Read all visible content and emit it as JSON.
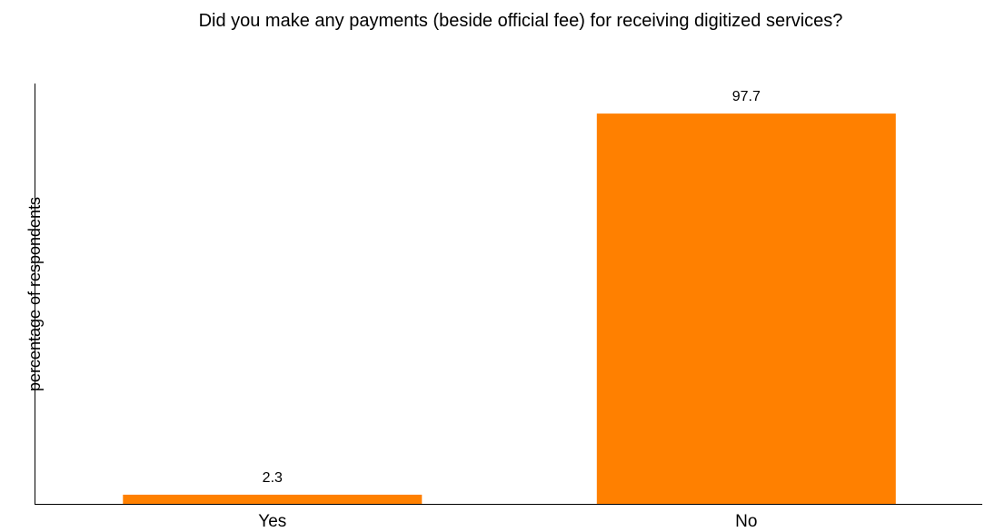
{
  "chart_data": {
    "type": "bar",
    "title": "Did you make any payments (beside official fee) for receiving digitized services?",
    "xlabel": "",
    "ylabel": "percentage of respondents",
    "categories": [
      "Yes",
      "No"
    ],
    "values": [
      2.3,
      97.7
    ],
    "data_labels": [
      "2.3",
      "97.7"
    ],
    "ylim": [
      0,
      105
    ],
    "grid": false,
    "legend": "none",
    "bar_color": "#FF8000"
  }
}
